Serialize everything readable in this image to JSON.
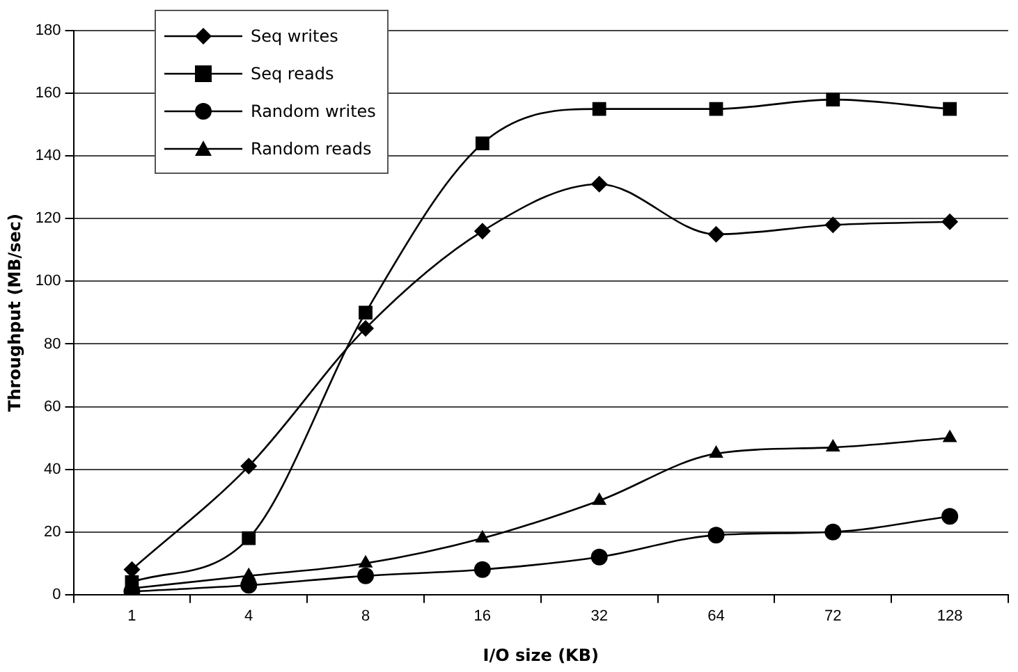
{
  "chart_data": {
    "type": "line",
    "xlabel": "I/O size (KB)",
    "ylabel": "Throughput (MB/sec)",
    "categories": [
      "1",
      "4",
      "8",
      "16",
      "32",
      "64",
      "72",
      "128"
    ],
    "series": [
      {
        "name": "Seq writes",
        "color": "#000000",
        "marker": "diamond",
        "values": [
          8,
          41,
          85,
          116,
          131,
          115,
          118,
          119
        ]
      },
      {
        "name": "Seq reads",
        "color": "#000000",
        "marker": "square",
        "values": [
          4,
          18,
          90,
          144,
          155,
          155,
          158,
          155
        ]
      },
      {
        "name": "Random writes",
        "color": "#000000",
        "marker": "circle",
        "values": [
          1,
          3,
          6,
          8,
          12,
          19,
          20,
          25
        ]
      },
      {
        "name": "Random reads",
        "color": "#000000",
        "marker": "triangle",
        "values": [
          2,
          6,
          10,
          18,
          30,
          45,
          47,
          50
        ]
      }
    ],
    "ylim": [
      0,
      180
    ],
    "yticks": [
      0,
      20,
      40,
      60,
      80,
      100,
      120,
      140,
      160,
      180
    ],
    "grid": "y",
    "legend": "top left",
    "line_style": "solid"
  }
}
